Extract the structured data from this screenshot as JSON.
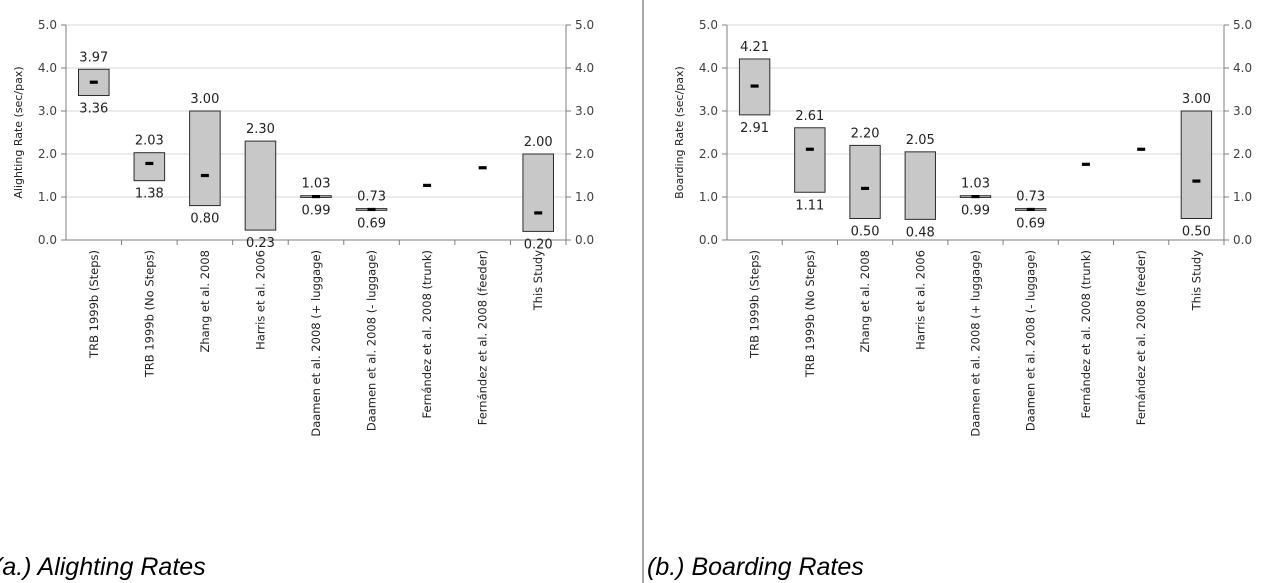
{
  "chart_data": [
    {
      "type": "range-bar",
      "caption": "(a.) Alighting Rates",
      "ylabel": "Alighting Rate (sec/pax)",
      "ylim": [
        0,
        5
      ],
      "yticks": [
        "0.0",
        "1.0",
        "2.0",
        "3.0",
        "4.0",
        "5.0"
      ],
      "grid": true,
      "categories": [
        "TRB 1999b (Steps)",
        "TRB 1999b (No Steps)",
        "Zhang et al. 2008",
        "Harris et al. 2006",
        "Daamen et al. 2008 (+ luggage)",
        "Daamen et al. 2008 (- luggage)",
        "Fernández et al. 2008 (trunk)",
        "Fernández et al. 2008 (feeder)",
        "This Study"
      ],
      "high": [
        3.97,
        2.03,
        3.0,
        2.3,
        1.03,
        0.73,
        null,
        null,
        2.0
      ],
      "low": [
        3.36,
        1.38,
        0.8,
        0.23,
        0.99,
        0.69,
        null,
        null,
        0.2
      ],
      "mean": [
        3.67,
        1.78,
        1.5,
        null,
        1.01,
        0.71,
        1.27,
        1.68,
        0.63
      ],
      "high_labels": [
        "3.97",
        "2.03",
        "3.00",
        "2.30",
        "1.03",
        "0.73",
        "",
        "",
        "2.00"
      ],
      "low_labels": [
        "3.36",
        "1.38",
        "0.80",
        "0.23",
        "0.99",
        "0.69",
        "",
        "",
        "0.20"
      ]
    },
    {
      "type": "range-bar",
      "caption": "(b.) Boarding Rates",
      "ylabel": "Boarding Rate (sec/pax)",
      "ylim": [
        0,
        5
      ],
      "yticks": [
        "0.0",
        "1.0",
        "2.0",
        "3.0",
        "4.0",
        "5.0"
      ],
      "grid": true,
      "categories": [
        "TRB 1999b (Steps)",
        "TRB 1999b (No Steps)",
        "Zhang et al. 2008",
        "Harris et al. 2006",
        "Daamen et al. 2008 (+ luggage)",
        "Daamen et al. 2008 (- luggage)",
        "Fernández et al. 2008 (trunk)",
        "Fernández et al. 2008 (feeder)",
        "This Study"
      ],
      "high": [
        4.21,
        2.61,
        2.2,
        2.05,
        1.03,
        0.73,
        null,
        null,
        3.0
      ],
      "low": [
        2.91,
        1.11,
        0.5,
        0.48,
        0.99,
        0.69,
        null,
        null,
        0.5
      ],
      "mean": [
        3.58,
        2.11,
        1.2,
        null,
        1.01,
        0.71,
        1.76,
        2.11,
        1.37
      ],
      "high_labels": [
        "4.21",
        "2.61",
        "2.20",
        "2.05",
        "1.03",
        "0.73",
        "",
        "",
        "3.00"
      ],
      "low_labels": [
        "2.91",
        "1.11",
        "0.50",
        "0.48",
        "0.99",
        "0.69",
        "",
        "",
        "0.50"
      ]
    }
  ]
}
